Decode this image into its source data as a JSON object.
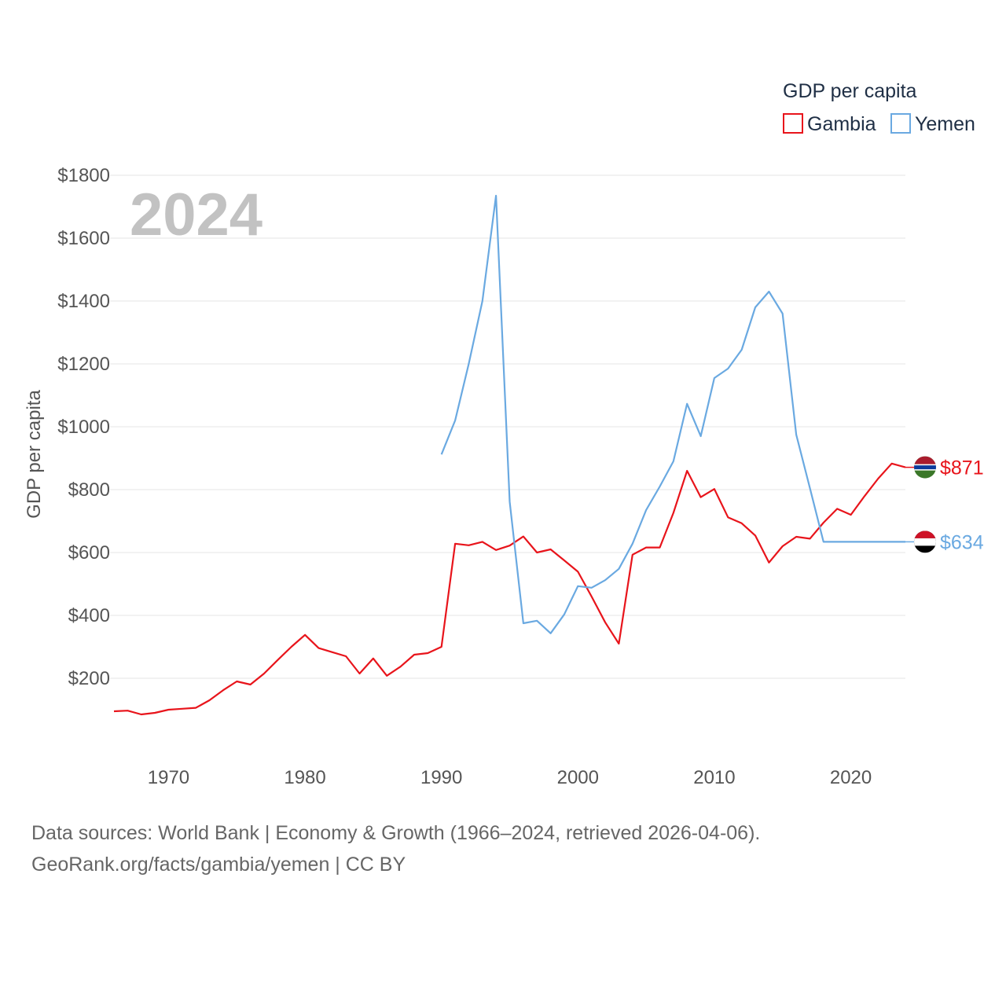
{
  "chart_data": {
    "type": "line",
    "year_label": "2024",
    "ylabel": "GDP per capita",
    "xlim": [
      1966,
      2024
    ],
    "ylim": [
      0,
      1800
    ],
    "yticks": [
      200,
      400,
      600,
      800,
      1000,
      1200,
      1400,
      1600,
      1800
    ],
    "ytick_labels": [
      "$200",
      "$400",
      "$600",
      "$800",
      "$1000",
      "$1200",
      "$1400",
      "$1600",
      "$1800"
    ],
    "xticks": [
      1970,
      1980,
      1990,
      2000,
      2010,
      2020
    ],
    "xtick_labels": [
      "1970",
      "1980",
      "1990",
      "2000",
      "2010",
      "2020"
    ],
    "legend": {
      "title": "GDP per capita",
      "position": "top-right"
    },
    "series": [
      {
        "name": "Gambia",
        "color": "#e8141b",
        "end_label": "$871",
        "flag": "gambia-flag",
        "x": [
          1966,
          1967,
          1968,
          1969,
          1970,
          1971,
          1972,
          1973,
          1974,
          1975,
          1976,
          1977,
          1978,
          1979,
          1980,
          1981,
          1982,
          1983,
          1984,
          1985,
          1986,
          1987,
          1988,
          1989,
          1990,
          1991,
          1992,
          1993,
          1994,
          1995,
          1996,
          1997,
          1998,
          1999,
          2000,
          2001,
          2002,
          2003,
          2004,
          2005,
          2006,
          2007,
          2008,
          2009,
          2010,
          2011,
          2012,
          2013,
          2014,
          2015,
          2016,
          2017,
          2018,
          2019,
          2020,
          2021,
          2022,
          2023,
          2024
        ],
        "values": [
          95,
          97,
          85,
          90,
          100,
          103,
          106,
          130,
          162,
          190,
          180,
          215,
          258,
          300,
          338,
          296,
          283,
          270,
          215,
          263,
          208,
          237,
          275,
          280,
          300,
          628,
          623,
          634,
          608,
          622,
          651,
          600,
          610,
          575,
          539,
          460,
          378,
          310,
          593,
          616,
          616,
          726,
          860,
          776,
          802,
          712,
          693,
          654,
          568,
          620,
          650,
          644,
          695,
          739,
          720,
          779,
          835,
          883,
          871
        ]
      },
      {
        "name": "Yemen",
        "color": "#6aa9e1",
        "end_label": "$634",
        "flag": "yemen-flag",
        "x": [
          1990,
          1991,
          1992,
          1993,
          1994,
          1995,
          1996,
          1997,
          1998,
          1999,
          2000,
          2001,
          2002,
          2003,
          2004,
          2005,
          2006,
          2007,
          2008,
          2009,
          2010,
          2011,
          2012,
          2013,
          2014,
          2015,
          2016,
          2017,
          2018,
          2019,
          2020,
          2021,
          2022,
          2023,
          2024
        ],
        "values": [
          912,
          1020,
          1200,
          1400,
          1735,
          762,
          375,
          383,
          343,
          403,
          493,
          488,
          512,
          548,
          628,
          735,
          810,
          890,
          1073,
          970,
          1155,
          1185,
          1245,
          1380,
          1430,
          1360,
          975,
          805,
          634,
          634,
          634,
          634,
          634,
          634,
          634
        ]
      }
    ]
  },
  "footer": {
    "line1": "Data sources: World Bank | Economy & Growth (1966–2024, retrieved 2026-04-06).",
    "line2": "GeoRank.org/facts/gambia/yemen | CC BY"
  }
}
